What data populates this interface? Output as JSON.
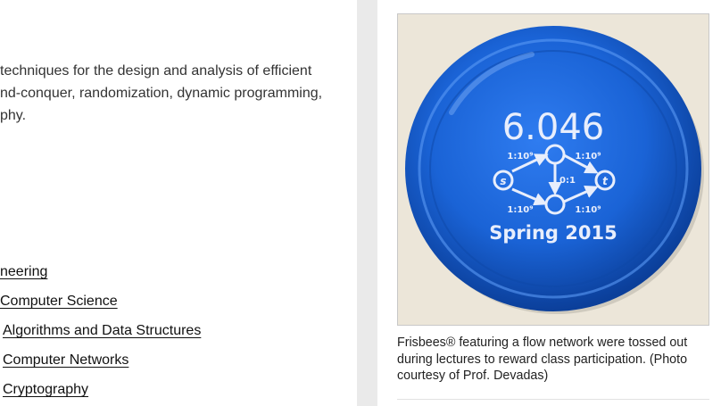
{
  "course_description": {
    "lines": [
      "techniques for the design and analysis of efficient",
      "nd-conquer, randomization, dynamic programming,",
      "phy."
    ]
  },
  "topics": [
    {
      "label": "neering",
      "level": 1
    },
    {
      "label": "Computer Science",
      "level": 2
    },
    {
      "label": "Algorithms and Data Structures",
      "level": 3
    },
    {
      "label": "Computer Networks",
      "level": 3
    },
    {
      "label": "Cryptography",
      "level": 3
    }
  ],
  "image": {
    "frisbee_title": "6.046",
    "frisbee_subtitle": "Spring 2015",
    "graph": {
      "source_label": "s",
      "sink_label": "t",
      "edge_labels": {
        "s_top": "1:10⁹",
        "top_t": "1:10⁹",
        "middle": "0:1",
        "s_bottom": "1:10⁹",
        "bottom_t": "1:10⁹"
      }
    },
    "colors": {
      "frisbee": "#1a63d6",
      "frisbee_dark": "#0b3f9a",
      "background": "#ece6d9",
      "print": "#e8eefc"
    }
  },
  "caption": "Frisbees® featuring a flow network were tossed out during lectures to reward class participation. (Photo courtesy of Prof. Devadas)"
}
